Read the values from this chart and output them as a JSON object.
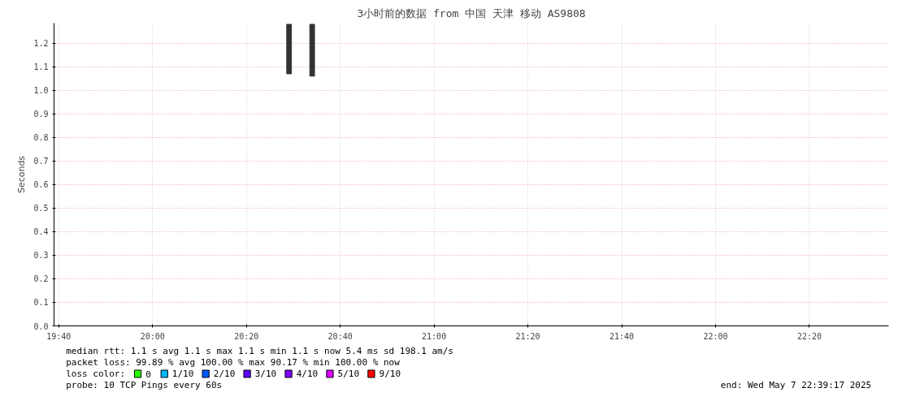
{
  "chart_data": {
    "type": "bar",
    "title": "3小时前的数据 from 中国 天津 移动 AS9808",
    "ylabel": "Seconds",
    "legend_title": "loss color:",
    "legend": "bottom left",
    "x": [
      20.485,
      20.567
    ],
    "series": [
      {
        "color": "#333333",
        "values": [
          0.21,
          0.22
        ],
        "base": [
          1.07,
          1.06
        ]
      },
      {
        "name": "0",
        "color": "#26ff00",
        "values": [
          null,
          null
        ]
      },
      {
        "name": "1/10",
        "color": "#00b8ff",
        "values": [
          null,
          null
        ]
      },
      {
        "name": "2/10",
        "color": "#0059ff",
        "values": [
          null,
          null
        ]
      },
      {
        "name": "3/10",
        "color": "#5e00ff",
        "values": [
          null,
          null
        ]
      },
      {
        "name": "4/10",
        "color": "#7e00ff",
        "values": [
          null,
          null
        ]
      },
      {
        "name": "5/10",
        "color": "#dd00ff",
        "values": [
          null,
          null
        ]
      },
      {
        "name": "9/10",
        "color": "#ff0000",
        "values": [
          null,
          null
        ]
      }
    ],
    "xlim": [
      19.65,
      22.615
    ],
    "ylim": [
      0,
      1.285
    ],
    "xticks": [
      {
        "value": 19.6667,
        "label": "19:40"
      },
      {
        "value": 20,
        "label": "20:00"
      },
      {
        "value": 20.3333,
        "label": "20:20"
      },
      {
        "value": 20.6667,
        "label": "20:40"
      },
      {
        "value": 21,
        "label": "21:00"
      },
      {
        "value": 21.3333,
        "label": "21:20"
      },
      {
        "value": 21.6667,
        "label": "21:40"
      },
      {
        "value": 22,
        "label": "22:00"
      },
      {
        "value": 22.3333,
        "label": "22:20"
      }
    ],
    "yticks": [
      {
        "value": 0,
        "label": "0.0"
      },
      {
        "value": 0.1,
        "label": "0.1"
      },
      {
        "value": 0.2,
        "label": "0.2"
      },
      {
        "value": 0.3,
        "label": "0.3"
      },
      {
        "value": 0.4,
        "label": "0.4"
      },
      {
        "value": 0.5,
        "label": "0.5"
      },
      {
        "value": 0.6,
        "label": "0.6"
      },
      {
        "value": 0.7,
        "label": "0.7"
      },
      {
        "value": 0.8,
        "label": "0.8"
      },
      {
        "value": 0.9,
        "label": "0.9"
      },
      {
        "value": 1.0,
        "label": "1.0"
      },
      {
        "value": 1.1,
        "label": "1.1"
      },
      {
        "value": 1.2,
        "label": "1.2"
      }
    ],
    "grid": true,
    "annotations": [
      "median rtt:  1.1  s avg  1.1  s max  1.1  s min  1.1  s now  5.4 ms sd  198.1   am/s",
      "packet loss: 99.89 % avg  100.00 % max  90.17 % min  100.00 % now",
      "probe:       10 TCP Pings every 60s",
      "end: Wed May  7 22:39:17 2025"
    ]
  }
}
